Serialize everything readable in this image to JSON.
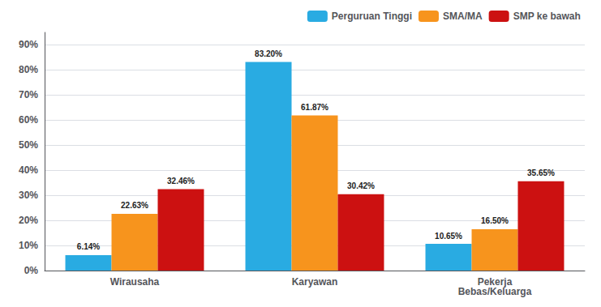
{
  "chart_data": {
    "type": "bar",
    "categories": [
      "Wirausaha",
      "Karyawan",
      "Pekerja\nBebas/Keluarga"
    ],
    "series": [
      {
        "name": "Perguruan Tinggi",
        "color": "#29ABE2",
        "values": [
          6.14,
          83.2,
          10.65
        ],
        "value_labels": [
          "6.14%",
          "83.20%",
          "10.65%"
        ]
      },
      {
        "name": "SMA/MA",
        "color": "#F7941D",
        "values": [
          22.63,
          61.87,
          16.5
        ],
        "value_labels": [
          "22.63%",
          "61.87%",
          "16.50%"
        ]
      },
      {
        "name": "SMP ke bawah",
        "color": "#CC1111",
        "values": [
          32.46,
          30.42,
          35.65
        ],
        "value_labels": [
          "32.46%",
          "30.42%",
          "35.65%"
        ]
      }
    ],
    "ylim": [
      0,
      95
    ],
    "yticks": [
      {
        "value": 0,
        "label": "0%"
      },
      {
        "value": 10,
        "label": "10%"
      },
      {
        "value": 20,
        "label": "20%"
      },
      {
        "value": 30,
        "label": "30%"
      },
      {
        "value": 40,
        "label": "40%"
      },
      {
        "value": 50,
        "label": "50%"
      },
      {
        "value": 60,
        "label": "60%"
      },
      {
        "value": 70,
        "label": "70%"
      },
      {
        "value": 80,
        "label": "80%"
      },
      {
        "value": 90,
        "label": "90%"
      }
    ],
    "grid": true,
    "legend": "upper right",
    "data_labels": true
  }
}
